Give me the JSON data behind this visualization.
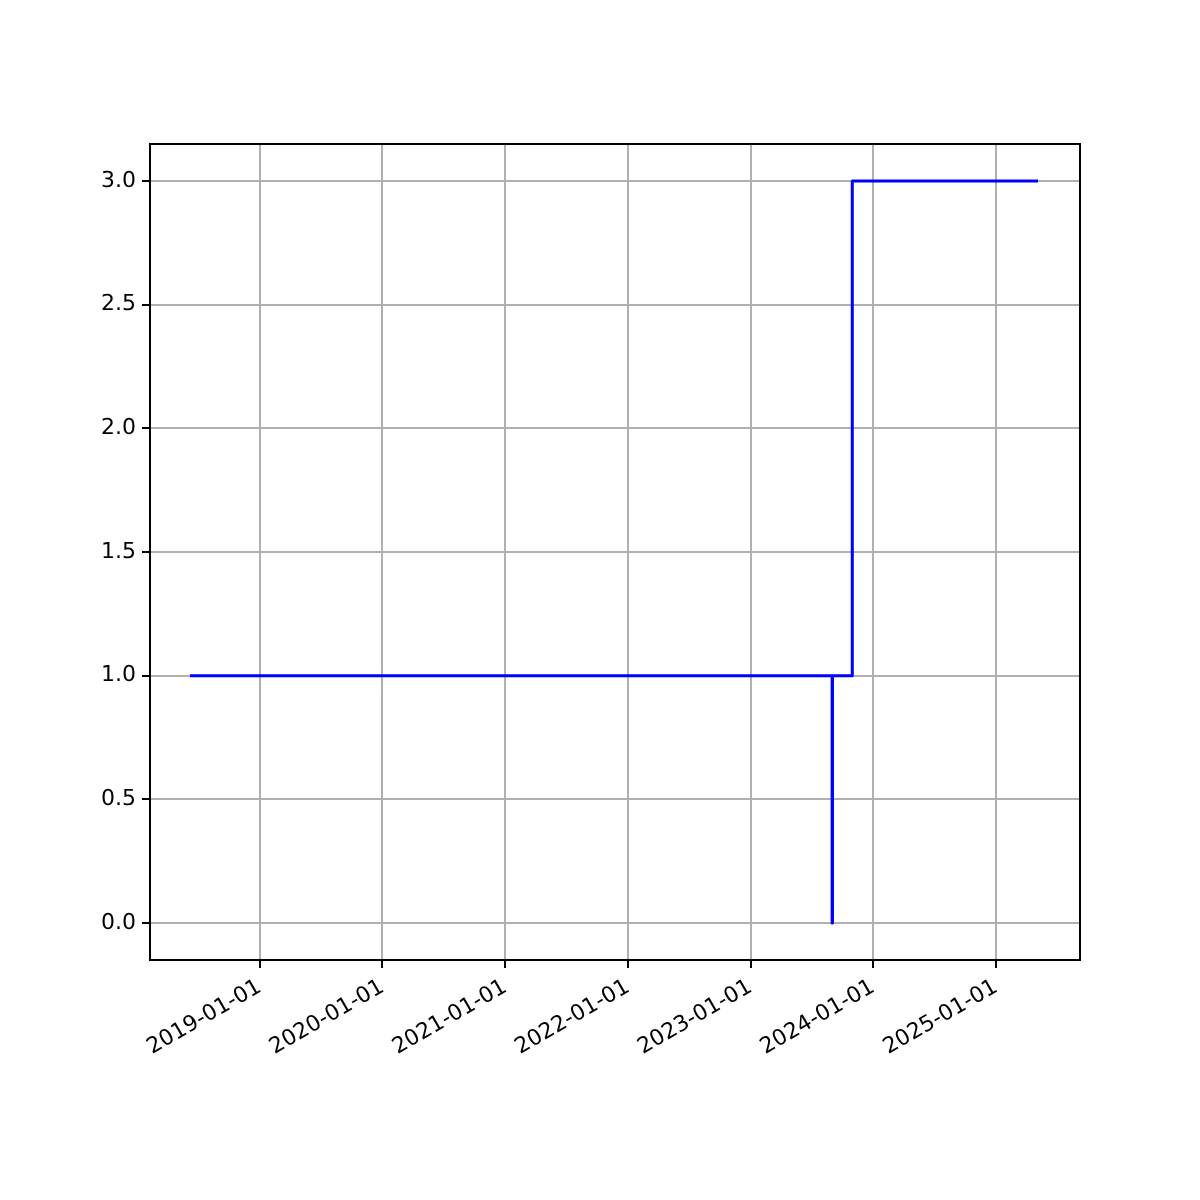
{
  "chart_data": {
    "type": "step",
    "x": [
      "2018-06-07",
      "2023-09-01",
      "2023-09-02",
      "2023-10-31",
      "2025-05-06"
    ],
    "series": [
      {
        "color": "#0000ff",
        "values": [
          1,
          0,
          1,
          3,
          3
        ]
      }
    ],
    "xlim": [
      "2018-02-08",
      "2025-09-08"
    ],
    "xticks": [
      "2019-01-01",
      "2020-01-01",
      "2021-01-01",
      "2022-01-01",
      "2023-01-01",
      "2024-01-01",
      "2025-01-01"
    ],
    "ylim": [
      -0.15,
      3.15
    ],
    "yticks": [
      {
        "value": 0,
        "label": "0.0"
      },
      {
        "value": 0.5,
        "label": "0.5"
      },
      {
        "value": 1,
        "label": "1.0"
      },
      {
        "value": 1.5,
        "label": "1.5"
      },
      {
        "value": 2,
        "label": "2.0"
      },
      {
        "value": 2.5,
        "label": "2.5"
      },
      {
        "value": 3,
        "label": "3.0"
      }
    ],
    "grid": true,
    "legend": false,
    "line_style": "solid",
    "marker": "none"
  }
}
